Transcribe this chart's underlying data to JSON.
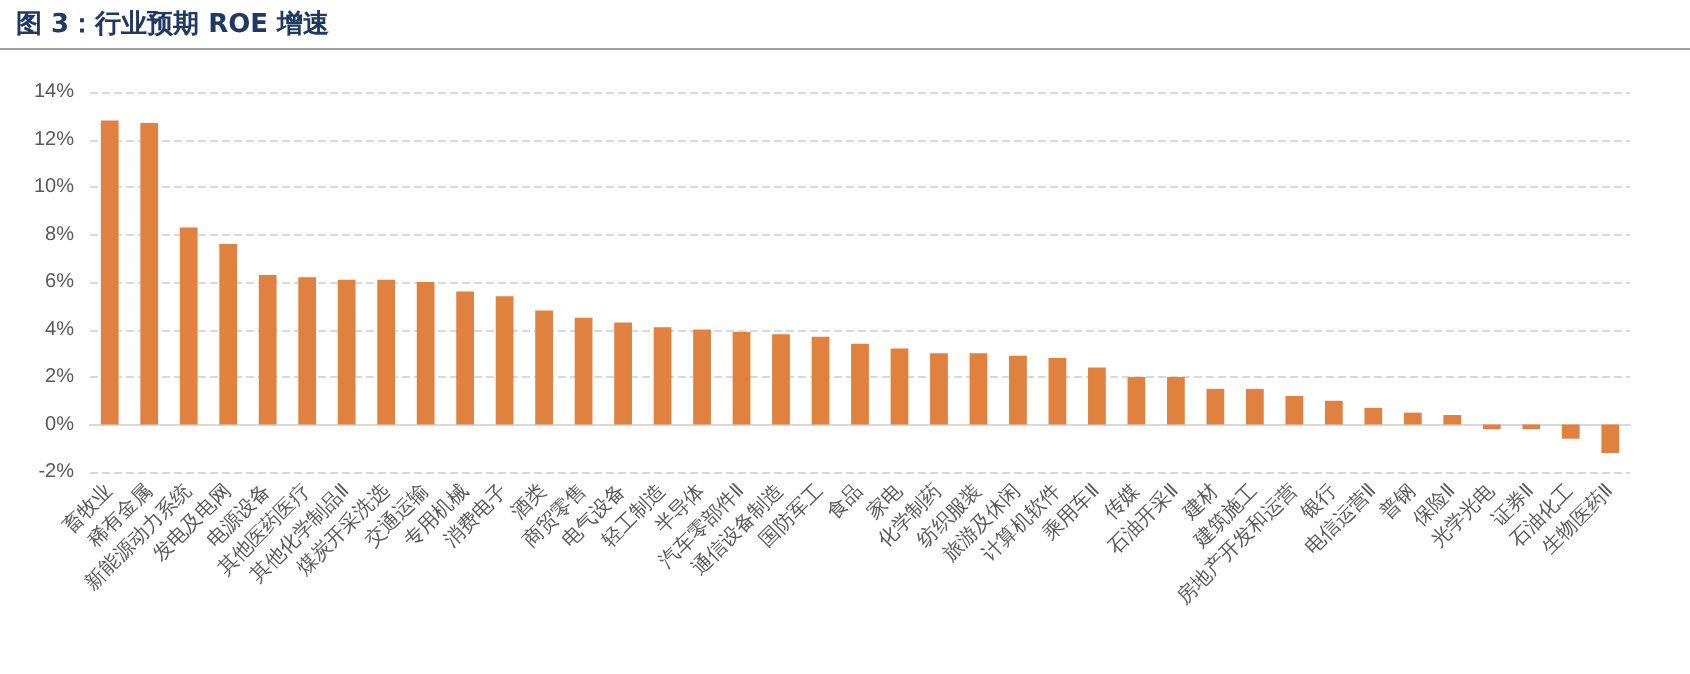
{
  "chart_data": {
    "type": "bar",
    "title": "图 3：行业预期 ROE 增速",
    "categories": [
      "畜牧业",
      "稀有金属",
      "新能源动力系统",
      "发电及电网",
      "电源设备",
      "其他医药医疗",
      "其他化学制品Ⅱ",
      "煤炭开采洗选",
      "交通运输",
      "专用机械",
      "消费电子",
      "酒类",
      "商贸零售",
      "电气设备",
      "轻工制造",
      "半导体",
      "汽车零部件Ⅱ",
      "通信设备制造",
      "国防军工",
      "食品",
      "家电",
      "化学制药",
      "纺织服装",
      "旅游及休闲",
      "计算机软件",
      "乘用车Ⅱ",
      "传媒",
      "石油开采Ⅱ",
      "建材",
      "建筑施工",
      "房地产开发和运营",
      "银行",
      "电信运营Ⅱ",
      "普钢",
      "保险Ⅱ",
      "光学光电",
      "证券Ⅱ",
      "石油化工",
      "生物医药Ⅱ"
    ],
    "values": [
      12.8,
      12.7,
      8.3,
      7.6,
      6.3,
      6.2,
      6.1,
      6.1,
      6.0,
      5.6,
      5.4,
      4.8,
      4.5,
      4.3,
      4.1,
      4.0,
      3.9,
      3.8,
      3.7,
      3.4,
      3.2,
      3.0,
      3.0,
      2.9,
      2.8,
      2.4,
      2.0,
      2.0,
      1.5,
      1.5,
      1.2,
      1.0,
      0.7,
      0.5,
      0.4,
      -0.2,
      -0.2,
      -0.6,
      -1.2
    ],
    "color": "#e0813f",
    "ylim": [
      -2,
      14
    ],
    "yticks": [
      {
        "value": -2,
        "label": "-2%"
      },
      {
        "value": 0,
        "label": "0%"
      },
      {
        "value": 2,
        "label": "2%"
      },
      {
        "value": 4,
        "label": "4%"
      },
      {
        "value": 6,
        "label": "6%"
      },
      {
        "value": 8,
        "label": "8%"
      },
      {
        "value": 10,
        "label": "10%"
      },
      {
        "value": 12,
        "label": "12%"
      },
      {
        "value": 14,
        "label": "14%"
      }
    ],
    "grid": true
  }
}
